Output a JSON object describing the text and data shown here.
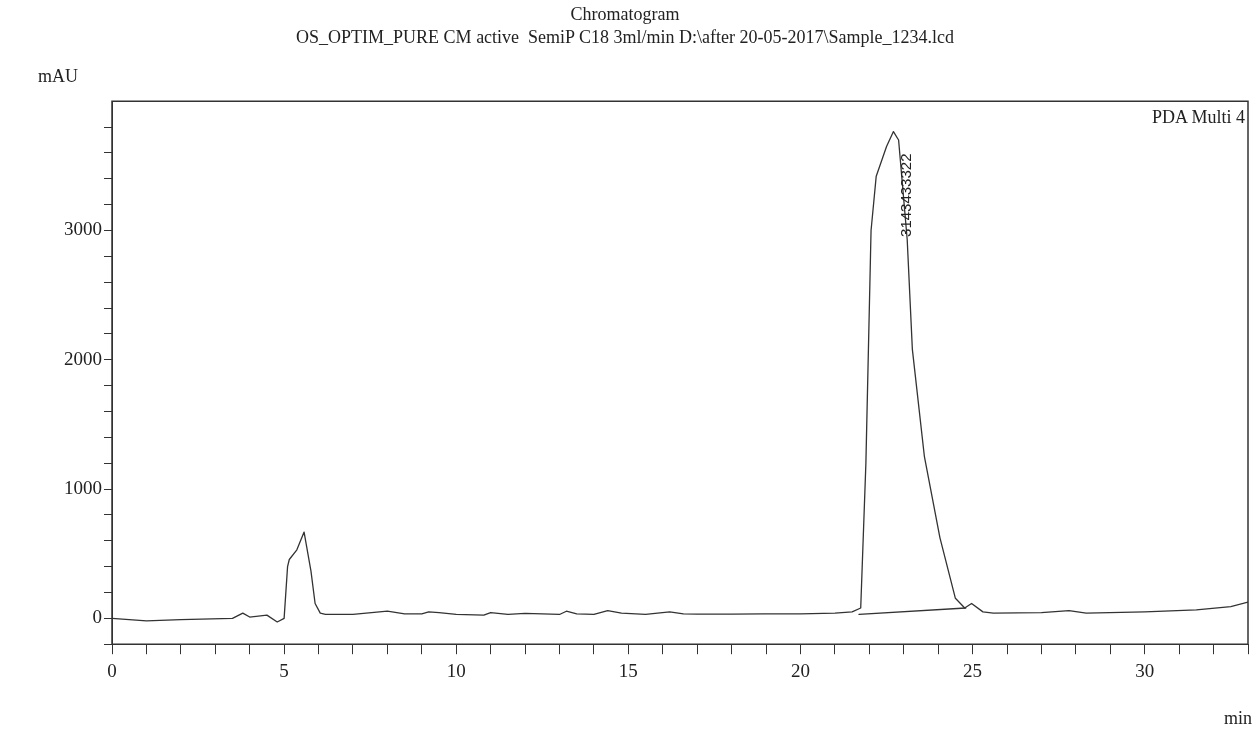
{
  "chart_data": {
    "type": "line",
    "title": "Chromatogram",
    "subtitle": "OS_OPTIM_PURE CM active  SemiP C18 3ml/min D:\\after 20-05-2017\\Sample_1234.lcd",
    "xlabel": "min",
    "ylabel": "mAU",
    "annotations": [
      "PDA Multi 4",
      {
        "text": "3143433322",
        "x": 23.1,
        "y": 2950
      }
    ],
    "xlim": [
      0,
      33
    ],
    "ylim": [
      -200,
      4000
    ],
    "xticks": [
      0,
      {
        "value": 1,
        "label": null
      },
      {
        "value": 2,
        "label": null
      },
      {
        "value": 3,
        "label": null
      },
      {
        "value": 4,
        "label": null
      },
      5,
      {
        "value": 6,
        "label": null
      },
      {
        "value": 7,
        "label": null
      },
      {
        "value": 8,
        "label": null
      },
      {
        "value": 9,
        "label": null
      },
      10,
      {
        "value": 11,
        "label": null
      },
      {
        "value": 12,
        "label": null
      },
      {
        "value": 13,
        "label": null
      },
      {
        "value": 14,
        "label": null
      },
      15,
      {
        "value": 16,
        "label": null
      },
      {
        "value": 17,
        "label": null
      },
      {
        "value": 18,
        "label": null
      },
      {
        "value": 19,
        "label": null
      },
      20,
      {
        "value": 21,
        "label": null
      },
      {
        "value": 22,
        "label": null
      },
      {
        "value": 23,
        "label": null
      },
      {
        "value": 24,
        "label": null
      },
      25,
      {
        "value": 26,
        "label": null
      },
      {
        "value": 27,
        "label": null
      },
      {
        "value": 28,
        "label": null
      },
      {
        "value": 29,
        "label": null
      },
      30,
      {
        "value": 31,
        "label": null
      },
      {
        "value": 32,
        "label": null
      },
      {
        "value": 33,
        "label": null
      }
    ],
    "yticks": [
      {
        "value": -200,
        "label": null
      },
      0,
      {
        "value": 200,
        "label": null
      },
      {
        "value": 400,
        "label": null
      },
      {
        "value": 600,
        "label": null
      },
      {
        "value": 800,
        "label": null
      },
      1000,
      {
        "value": 1200,
        "label": null
      },
      {
        "value": 1400,
        "label": null
      },
      {
        "value": 1600,
        "label": null
      },
      {
        "value": 1800,
        "label": null
      },
      2000,
      {
        "value": 2200,
        "label": null
      },
      {
        "value": 2400,
        "label": null
      },
      {
        "value": 2600,
        "label": null
      },
      {
        "value": 2800,
        "label": null
      },
      3000,
      {
        "value": 3200,
        "label": null
      },
      {
        "value": 3400,
        "label": null
      },
      {
        "value": 3600,
        "label": null
      },
      {
        "value": 3800,
        "label": null
      }
    ],
    "grid": false,
    "legend": false,
    "marker": "none",
    "line_style": "solid",
    "series": [
      {
        "color": "#333333",
        "x": [
          0,
          1,
          2,
          3.5,
          3.8,
          4,
          4.5,
          4.8,
          5.0,
          5.1,
          5.15,
          5.37,
          5.58,
          5.78,
          5.9,
          6.05,
          6.2,
          7,
          8,
          8.5,
          9,
          9.2,
          9.5,
          10,
          10.8,
          11,
          11.5,
          12,
          13,
          13.2,
          13.5,
          14,
          14.4,
          14.8,
          15.5,
          16.2,
          16.6,
          17,
          18,
          19,
          20,
          21,
          21.5,
          21.75,
          21.9,
          22.05,
          22.2,
          22.5,
          22.7,
          22.85,
          23.1,
          23.25,
          23.6,
          24.05,
          24.5,
          24.77,
          24.97,
          25.3,
          25.6,
          27,
          27.8,
          28.3,
          30,
          31.5,
          32.5,
          33
        ],
        "values": [
          0,
          -20,
          -10,
          0,
          40,
          10,
          25,
          -28,
          0,
          400,
          455,
          530,
          667,
          365,
          115,
          40,
          30,
          30,
          56,
          35,
          35,
          50,
          45,
          30,
          25,
          45,
          30,
          38,
          30,
          55,
          35,
          30,
          60,
          40,
          30,
          50,
          35,
          32,
          32,
          35,
          35,
          40,
          50,
          80,
          1200,
          3000,
          3420,
          3650,
          3765,
          3700,
          2930,
          2080,
          1250,
          625,
          155,
          80,
          115,
          50,
          40,
          45,
          60,
          40,
          50,
          65,
          90,
          125
        ]
      },
      {
        "color": "#333333",
        "x": [
          21.7,
          24.8
        ],
        "values": [
          30,
          80
        ]
      }
    ]
  }
}
